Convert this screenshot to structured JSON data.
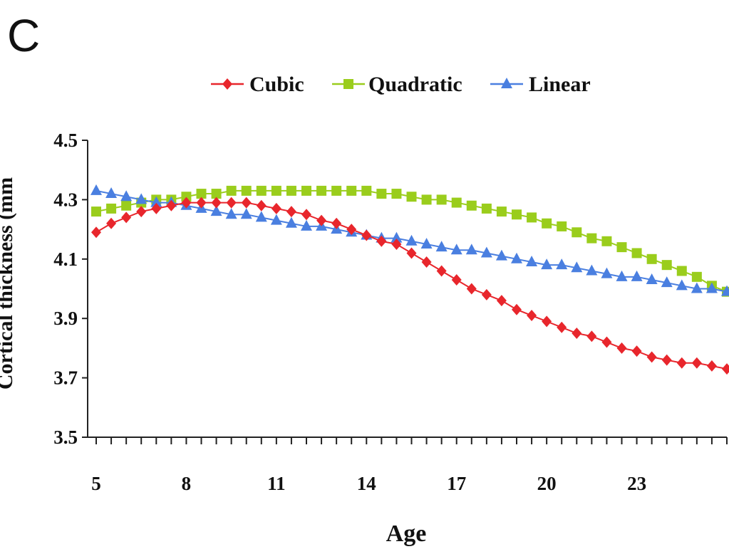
{
  "panel_label": "C",
  "chart_data": {
    "type": "line",
    "xlabel": "Age",
    "ylabel": "Cortical thickness (mm",
    "x_ticks": [
      5,
      8,
      11,
      14,
      17,
      20,
      23
    ],
    "y_ticks": [
      "3.5",
      "3.7",
      "3.9",
      "4.1",
      "4.3",
      "4.5"
    ],
    "xlim": [
      5,
      26
    ],
    "ylim": [
      3.5,
      4.5
    ],
    "legend_position": "top",
    "grid": false,
    "x": [
      5,
      5.5,
      6,
      6.5,
      7,
      7.5,
      8,
      8.5,
      9,
      9.5,
      10,
      10.5,
      11,
      11.5,
      12,
      12.5,
      13,
      13.5,
      14,
      14.5,
      15,
      15.5,
      16,
      16.5,
      17,
      17.5,
      18,
      18.5,
      19,
      19.5,
      20,
      20.5,
      21,
      21.5,
      22,
      22.5,
      23,
      23.5,
      24,
      24.5,
      25,
      25.5,
      26
    ],
    "series": [
      {
        "name": "Cubic",
        "color": "#e8262c",
        "marker": "diamond",
        "values": [
          4.19,
          4.22,
          4.24,
          4.26,
          4.27,
          4.28,
          4.29,
          4.29,
          4.29,
          4.29,
          4.29,
          4.28,
          4.27,
          4.26,
          4.25,
          4.23,
          4.22,
          4.2,
          4.18,
          4.16,
          4.15,
          4.12,
          4.09,
          4.06,
          4.03,
          4.0,
          3.98,
          3.96,
          3.93,
          3.91,
          3.89,
          3.87,
          3.85,
          3.84,
          3.82,
          3.8,
          3.79,
          3.77,
          3.76,
          3.75,
          3.75,
          3.74,
          3.73
        ]
      },
      {
        "name": "Quadratic",
        "color": "#9acd1c",
        "marker": "square",
        "values": [
          4.26,
          4.27,
          4.28,
          4.29,
          4.3,
          4.3,
          4.31,
          4.32,
          4.32,
          4.33,
          4.33,
          4.33,
          4.33,
          4.33,
          4.33,
          4.33,
          4.33,
          4.33,
          4.33,
          4.32,
          4.32,
          4.31,
          4.3,
          4.3,
          4.29,
          4.28,
          4.27,
          4.26,
          4.25,
          4.24,
          4.22,
          4.21,
          4.19,
          4.17,
          4.16,
          4.14,
          4.12,
          4.1,
          4.08,
          4.06,
          4.04,
          4.01,
          3.99
        ]
      },
      {
        "name": "Linear",
        "color": "#4a7fe0",
        "marker": "triangle",
        "values": [
          4.33,
          4.32,
          4.31,
          4.3,
          4.29,
          4.29,
          4.28,
          4.27,
          4.26,
          4.25,
          4.25,
          4.24,
          4.23,
          4.22,
          4.21,
          4.21,
          4.2,
          4.19,
          4.18,
          4.17,
          4.17,
          4.16,
          4.15,
          4.14,
          4.13,
          4.13,
          4.12,
          4.11,
          4.1,
          4.09,
          4.08,
          4.08,
          4.07,
          4.06,
          4.05,
          4.04,
          4.04,
          4.03,
          4.02,
          4.01,
          4.0,
          4.0,
          3.99
        ]
      }
    ]
  }
}
